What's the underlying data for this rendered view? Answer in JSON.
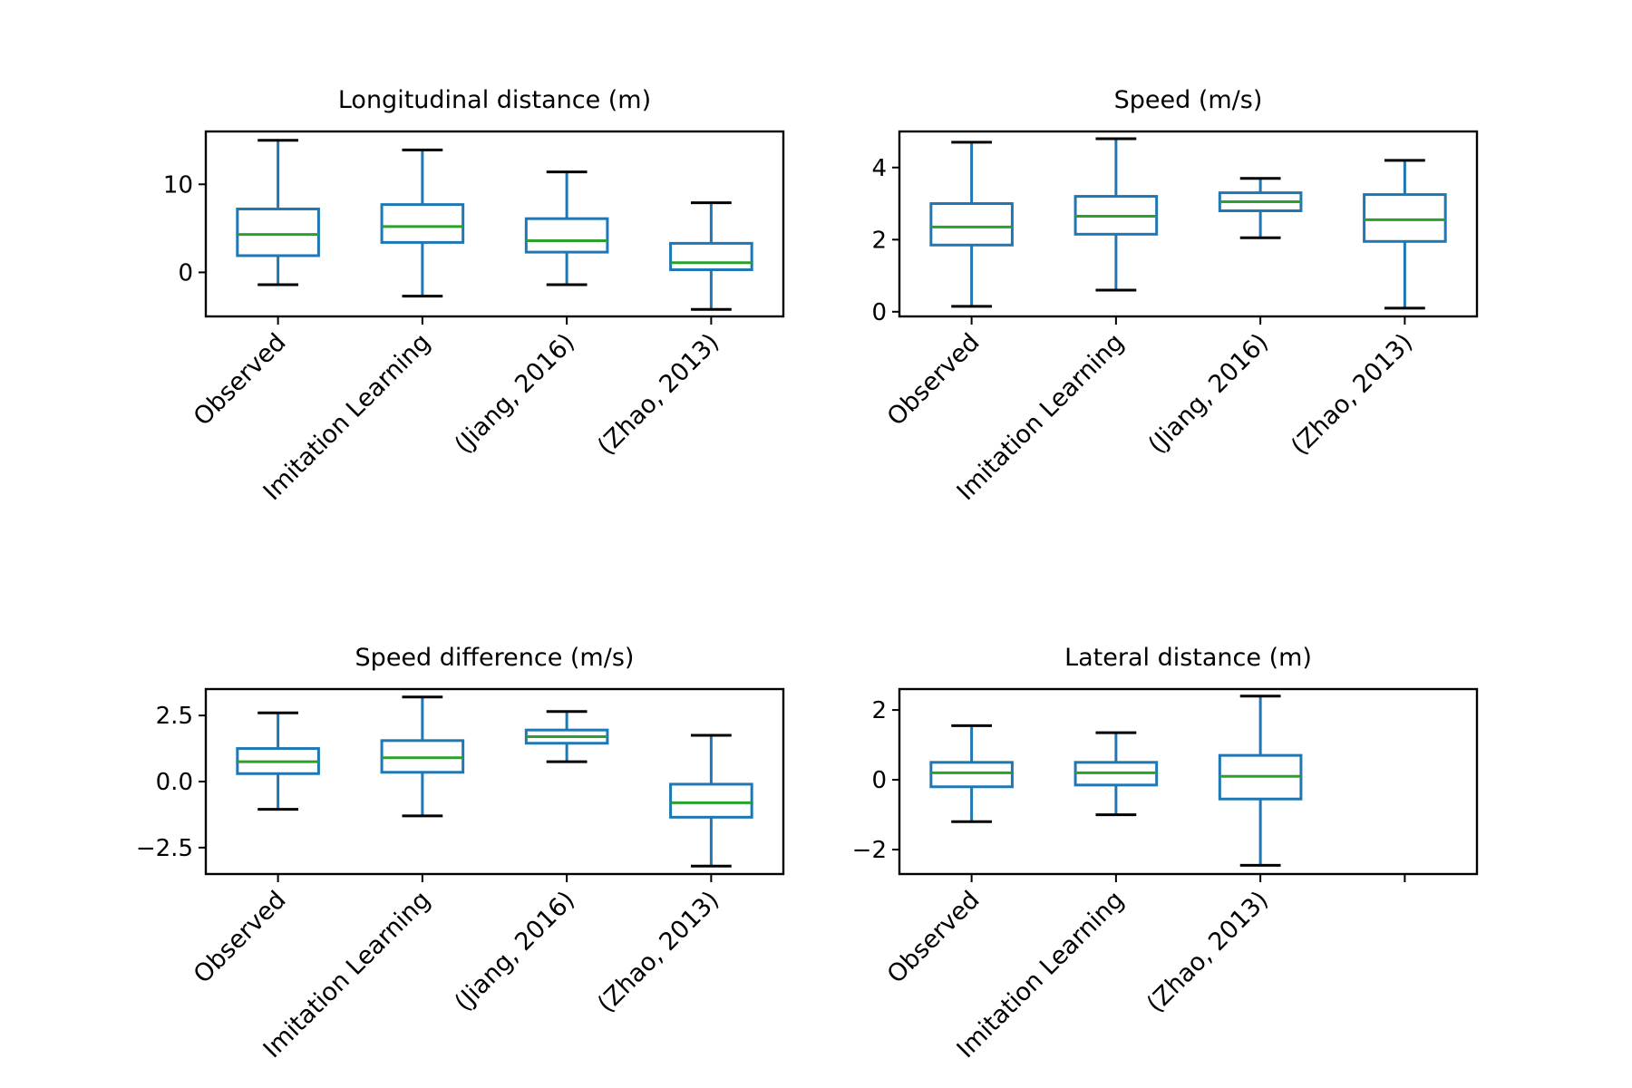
{
  "colors": {
    "box": "#1f77b4",
    "median": "#2ca02c",
    "cap": "#000000"
  },
  "chart_data": [
    {
      "type": "box",
      "title": "Longitudinal distance (m)",
      "ylim": [
        -5,
        16
      ],
      "yticks": [
        0,
        10
      ],
      "ytick_labels": [
        "0",
        "10"
      ],
      "categories": [
        "Observed",
        "Imitation Learning",
        "(Jiang, 2016)",
        "(Zhao, 2013)"
      ],
      "boxes": [
        {
          "label": "Observed",
          "whislo": -1.4,
          "q1": 1.9,
          "med": 4.3,
          "q3": 7.2,
          "whishi": 15.0
        },
        {
          "label": "Imitation Learning",
          "whislo": -2.7,
          "q1": 3.4,
          "med": 5.2,
          "q3": 7.7,
          "whishi": 13.9
        },
        {
          "label": "(Jiang, 2016)",
          "whislo": -1.4,
          "q1": 2.3,
          "med": 3.6,
          "q3": 6.1,
          "whishi": 11.4
        },
        {
          "label": "(Zhao, 2013)",
          "whislo": -4.2,
          "q1": 0.3,
          "med": 1.1,
          "q3": 3.3,
          "whishi": 7.9
        }
      ]
    },
    {
      "type": "box",
      "title": "Speed (m/s)",
      "ylim": [
        -0.13,
        5.0
      ],
      "yticks": [
        0,
        2,
        4
      ],
      "ytick_labels": [
        "0",
        "2",
        "4"
      ],
      "categories": [
        "Observed",
        "Imitation Learning",
        "(Jiang, 2016)",
        "(Zhao, 2013)"
      ],
      "boxes": [
        {
          "label": "Observed",
          "whislo": 0.15,
          "q1": 1.85,
          "med": 2.35,
          "q3": 3.0,
          "whishi": 4.7
        },
        {
          "label": "Imitation Learning",
          "whislo": 0.6,
          "q1": 2.15,
          "med": 2.65,
          "q3": 3.2,
          "whishi": 4.8
        },
        {
          "label": "(Jiang, 2016)",
          "whislo": 2.05,
          "q1": 2.8,
          "med": 3.05,
          "q3": 3.3,
          "whishi": 3.7
        },
        {
          "label": "(Zhao, 2013)",
          "whislo": 0.1,
          "q1": 1.95,
          "med": 2.55,
          "q3": 3.25,
          "whishi": 4.2
        }
      ]
    },
    {
      "type": "box",
      "title": "Speed difference (m/s)",
      "ylim": [
        -3.5,
        3.5
      ],
      "yticks": [
        -2.5,
        0.0,
        2.5
      ],
      "ytick_labels": [
        "−2.5",
        "0.0",
        "2.5"
      ],
      "categories": [
        "Observed",
        "Imitation Learning",
        "(Jiang, 2016)",
        "(Zhao, 2013)"
      ],
      "boxes": [
        {
          "label": "Observed",
          "whislo": -1.05,
          "q1": 0.3,
          "med": 0.75,
          "q3": 1.25,
          "whishi": 2.6
        },
        {
          "label": "Imitation Learning",
          "whislo": -1.3,
          "q1": 0.35,
          "med": 0.9,
          "q3": 1.55,
          "whishi": 3.2
        },
        {
          "label": "(Jiang, 2016)",
          "whislo": 0.75,
          "q1": 1.45,
          "med": 1.7,
          "q3": 1.95,
          "whishi": 2.65
        },
        {
          "label": "(Zhao, 2013)",
          "whislo": -3.2,
          "q1": -1.35,
          "med": -0.8,
          "q3": -0.1,
          "whishi": 1.75
        }
      ]
    },
    {
      "type": "box",
      "title": "Lateral distance (m)",
      "ylim": [
        -2.7,
        2.6
      ],
      "yticks": [
        -2,
        0,
        2
      ],
      "ytick_labels": [
        "−2",
        "0",
        "2"
      ],
      "categories": [
        "Observed",
        "Imitation Learning",
        "(Zhao, 2013)",
        ""
      ],
      "boxes": [
        {
          "label": "Observed",
          "whislo": -1.2,
          "q1": -0.2,
          "med": 0.2,
          "q3": 0.5,
          "whishi": 1.55
        },
        {
          "label": "Imitation Learning",
          "whislo": -1.0,
          "q1": -0.15,
          "med": 0.2,
          "q3": 0.5,
          "whishi": 1.35
        },
        {
          "label": "(Zhao, 2013)",
          "whislo": -2.45,
          "q1": -0.55,
          "med": 0.1,
          "q3": 0.7,
          "whishi": 2.4
        }
      ]
    }
  ]
}
